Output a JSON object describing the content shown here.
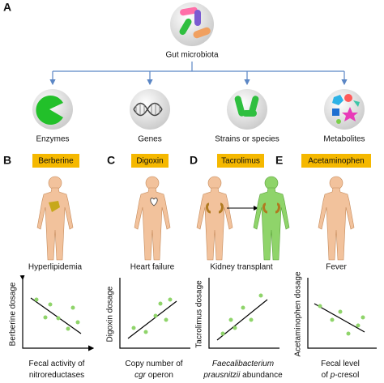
{
  "panel_a": {
    "label": "A",
    "title": "Gut microbiota",
    "items": [
      "Enzymes",
      "Genes",
      "Strains or species",
      "Metabolites"
    ]
  },
  "panels": [
    {
      "label": "B",
      "drug": "Berberine",
      "condition": "Hyperlipidemia",
      "y_label": "Berberine dosage",
      "x_label": [
        [
          {
            "text": "Fecal activity of",
            "italic": false
          }
        ],
        [
          {
            "text": "nitroreductases",
            "italic": false
          }
        ]
      ]
    },
    {
      "label": "C",
      "drug": "Digoxin",
      "condition": "Heart failure",
      "y_label": "Digoxin dosage",
      "x_label": [
        [
          {
            "text": "Copy number of",
            "italic": false
          }
        ],
        [
          {
            "text": "cgr",
            "italic": true
          },
          {
            "text": " operon",
            "italic": false
          }
        ]
      ]
    },
    {
      "label": "D",
      "drug": "Tacrolimus",
      "condition": "Kidney transplant",
      "y_label": "Tacrolimus dosage",
      "x_label": [
        [
          {
            "text": "Faecalibacterium",
            "italic": true
          }
        ],
        [
          {
            "text": "prausnitzii",
            "italic": true
          },
          {
            "text": " abundance",
            "italic": false
          }
        ]
      ]
    },
    {
      "label": "E",
      "drug": "Acetaminophen",
      "condition": "Fever",
      "y_label": "Acetaminophen dosage",
      "x_label": [
        [
          {
            "text": "Fecal level",
            "italic": false
          }
        ],
        [
          {
            "text": "of ",
            "italic": false
          },
          {
            "text": "p",
            "italic": true
          },
          {
            "text": "-cresol",
            "italic": false
          }
        ]
      ]
    }
  ]
}
